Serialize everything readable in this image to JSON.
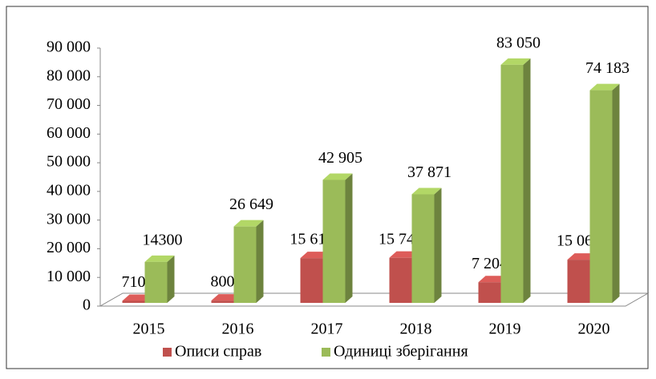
{
  "chart_data": {
    "type": "bar3d",
    "categories": [
      "2015",
      "2016",
      "2017",
      "2018",
      "2019",
      "2020"
    ],
    "series": [
      {
        "name": "Описи справ",
        "color": "#c0504d",
        "values": [
          710,
          800,
          15611,
          15743,
          7204,
          15063
        ],
        "value_labels": [
          "710",
          "800",
          "15 611",
          "15 743",
          "7 204",
          "15 063"
        ]
      },
      {
        "name": "Одиниці зберігання",
        "color": "#9bbb59",
        "values": [
          14300,
          26649,
          42905,
          37871,
          83050,
          74183
        ],
        "value_labels": [
          "14300",
          "26 649",
          "42 905",
          "37 871",
          "83 050",
          "74 183"
        ]
      }
    ],
    "ylim": [
      0,
      90000
    ],
    "yticks": [
      0,
      {
        "value": 10000,
        "label": "10 000"
      },
      {
        "value": 20000,
        "label": "20 000"
      },
      {
        "value": 30000,
        "label": "30 000"
      },
      {
        "value": 40000,
        "label": "40 000"
      },
      {
        "value": 50000,
        "label": "50 000"
      },
      {
        "value": 60000,
        "label": "60 000"
      },
      {
        "value": 70000,
        "label": "70 000"
      },
      {
        "value": 80000,
        "label": "80 000"
      },
      {
        "value": 90000,
        "label": "90 000"
      }
    ],
    "legend": "bottom"
  }
}
